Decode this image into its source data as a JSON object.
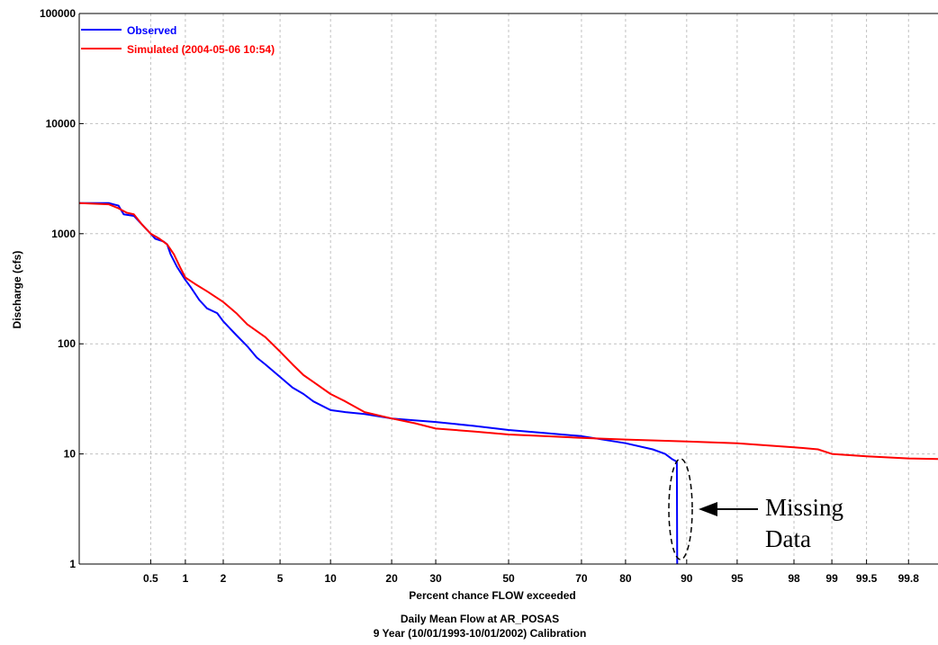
{
  "chart_data": {
    "type": "line",
    "title": "Daily Mean Flow at AR_POSAS",
    "subtitle": "9 Year (10/01/1993-10/01/2002) Calibration",
    "xlabel": "Percent chance FLOW exceeded",
    "ylabel": "Discharge (cfs)",
    "x_scale": "probability",
    "y_scale": "log",
    "ylim": [
      1,
      100000
    ],
    "grid": true,
    "legend_position": "top-left",
    "x_ticks": [
      "0.5",
      "1",
      "2",
      "5",
      "10",
      "20",
      "30",
      "50",
      "70",
      "80",
      "90",
      "95",
      "98",
      "99",
      "99.5",
      "99.8"
    ],
    "y_ticks": [
      "1",
      "10",
      "100",
      "1000",
      "10000",
      "100000"
    ],
    "series": [
      {
        "name": "Observed",
        "color": "#0000ff",
        "points": [
          [
            0.1,
            1900
          ],
          [
            0.2,
            1900
          ],
          [
            0.25,
            1800
          ],
          [
            0.28,
            1500
          ],
          [
            0.35,
            1450
          ],
          [
            0.42,
            1200
          ],
          [
            0.5,
            1000
          ],
          [
            0.55,
            900
          ],
          [
            0.65,
            850
          ],
          [
            0.7,
            800
          ],
          [
            0.75,
            650
          ],
          [
            0.85,
            500
          ],
          [
            1.0,
            380
          ],
          [
            1.1,
            330
          ],
          [
            1.3,
            250
          ],
          [
            1.5,
            210
          ],
          [
            1.8,
            190
          ],
          [
            2.0,
            160
          ],
          [
            2.5,
            120
          ],
          [
            3.0,
            95
          ],
          [
            3.5,
            75
          ],
          [
            4.0,
            65
          ],
          [
            5.0,
            50
          ],
          [
            6.0,
            40
          ],
          [
            7.0,
            35
          ],
          [
            8.0,
            30
          ],
          [
            10,
            25
          ],
          [
            12,
            24
          ],
          [
            15,
            23
          ],
          [
            20,
            21
          ],
          [
            30,
            19.5
          ],
          [
            40,
            18
          ],
          [
            50,
            16.5
          ],
          [
            60,
            15.5
          ],
          [
            70,
            14.5
          ],
          [
            80,
            12.5
          ],
          [
            85,
            11
          ],
          [
            87,
            10
          ],
          [
            88,
            9
          ],
          [
            88.7,
            8.5
          ],
          [
            88.75,
            1
          ]
        ]
      },
      {
        "name": "Simulated (2004-05-06 10:54)",
        "color": "#ff0000",
        "points": [
          [
            0.1,
            1900
          ],
          [
            0.2,
            1850
          ],
          [
            0.25,
            1700
          ],
          [
            0.3,
            1550
          ],
          [
            0.35,
            1500
          ],
          [
            0.42,
            1200
          ],
          [
            0.5,
            1000
          ],
          [
            0.6,
            900
          ],
          [
            0.7,
            800
          ],
          [
            0.8,
            650
          ],
          [
            0.9,
            500
          ],
          [
            1.0,
            400
          ],
          [
            1.2,
            350
          ],
          [
            1.5,
            300
          ],
          [
            2.0,
            240
          ],
          [
            2.5,
            190
          ],
          [
            3.0,
            150
          ],
          [
            4.0,
            115
          ],
          [
            5.0,
            85
          ],
          [
            6.0,
            65
          ],
          [
            7.0,
            52
          ],
          [
            8.0,
            45
          ],
          [
            10,
            35
          ],
          [
            12,
            30
          ],
          [
            15,
            24
          ],
          [
            20,
            21
          ],
          [
            25,
            19
          ],
          [
            30,
            17
          ],
          [
            40,
            16
          ],
          [
            50,
            15
          ],
          [
            60,
            14.5
          ],
          [
            70,
            14
          ],
          [
            80,
            13.5
          ],
          [
            90,
            13
          ],
          [
            95,
            12.5
          ],
          [
            98,
            11.5
          ],
          [
            98.7,
            11
          ],
          [
            99,
            10
          ],
          [
            99.5,
            9.5
          ],
          [
            99.8,
            9.1
          ],
          [
            99.9,
            9
          ]
        ]
      }
    ],
    "annotations": [
      {
        "text_line1": "Missing",
        "text_line2": "Data"
      }
    ]
  }
}
